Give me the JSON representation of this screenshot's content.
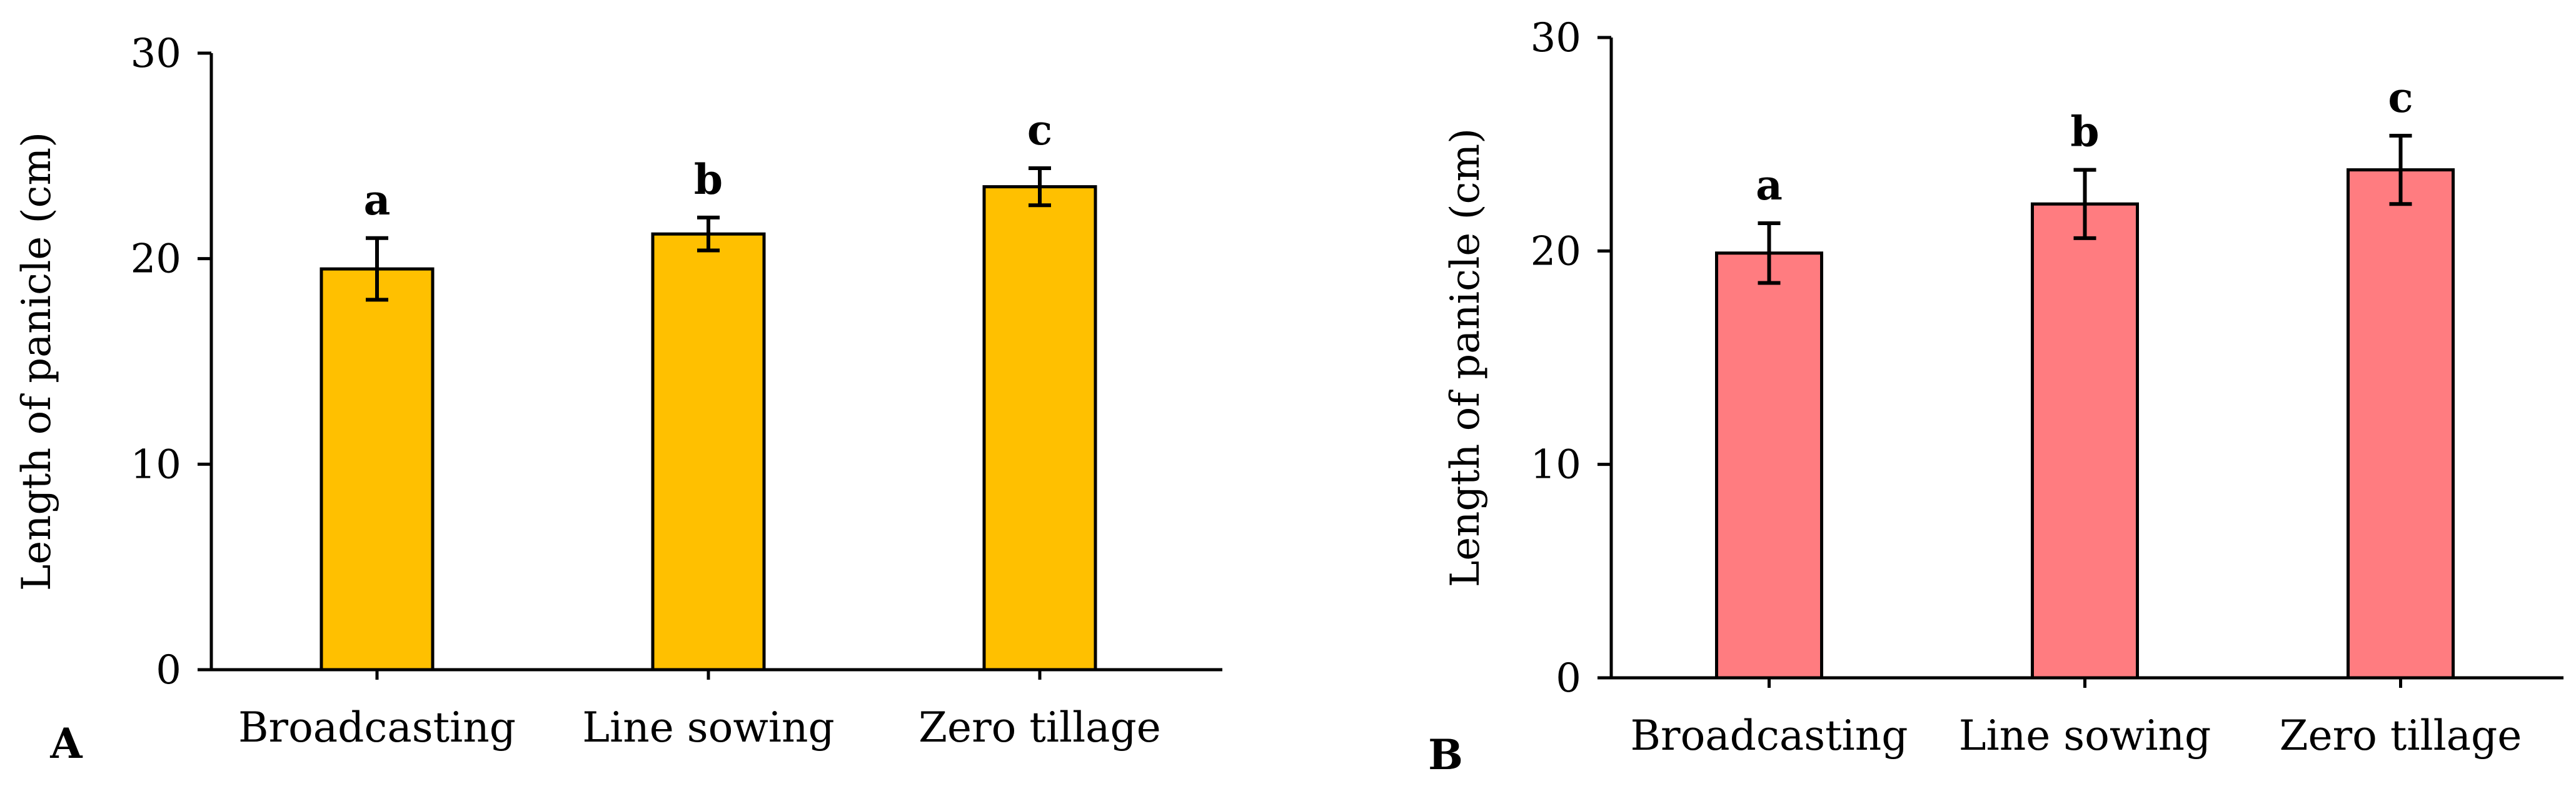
{
  "chart_data": [
    {
      "panel": "A",
      "type": "bar",
      "categories": [
        "Broadcasting",
        "Line sowing",
        "Zero tillage"
      ],
      "values": [
        19.5,
        21.2,
        23.5
      ],
      "errors": [
        1.5,
        0.8,
        0.9
      ],
      "significance": [
        "a",
        "b",
        "c"
      ],
      "ylabel": "Length of panicle (cm)",
      "xlabel": "",
      "ylim": [
        0,
        30
      ],
      "yticks": [
        0,
        10,
        20,
        30
      ],
      "bar_color": "#FFC000",
      "grid": false
    },
    {
      "panel": "B",
      "type": "bar",
      "categories": [
        "Broadcasting",
        "Line sowing",
        "Zero tillage"
      ],
      "values": [
        19.9,
        22.2,
        23.8
      ],
      "errors": [
        1.4,
        1.6,
        1.6
      ],
      "significance": [
        "a",
        "b",
        "c"
      ],
      "ylabel": "Length of panicle (cm)",
      "xlabel": "",
      "ylim": [
        0,
        30
      ],
      "yticks": [
        0,
        10,
        20,
        30
      ],
      "bar_color": "#FF7C80",
      "grid": false
    }
  ]
}
